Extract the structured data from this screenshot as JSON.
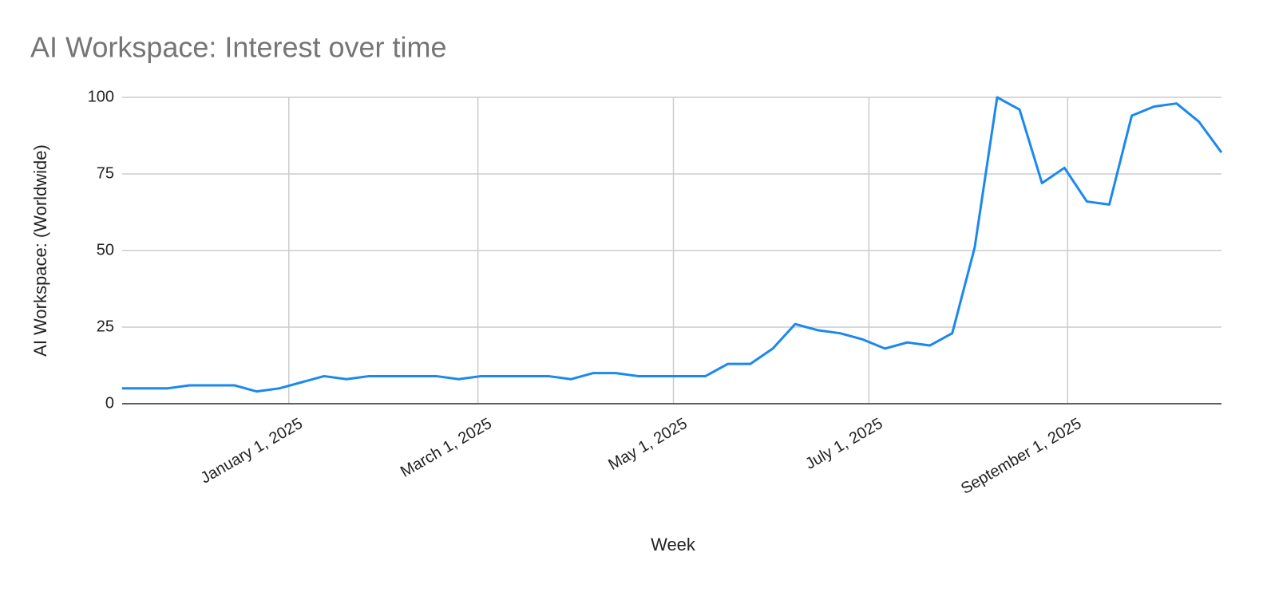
{
  "chart_data": {
    "type": "line",
    "title": "AI Workspace: Interest over time",
    "x_label": "Week",
    "y_label": "AI Workspace: (Worldwide)",
    "color": "#1a88f0",
    "grid": true,
    "x": [
      "2024-11-10",
      "2024-11-17",
      "2024-11-24",
      "2024-12-01",
      "2024-12-08",
      "2024-12-15",
      "2024-12-22",
      "2024-12-29",
      "2025-01-05",
      "2025-01-12",
      "2025-01-19",
      "2025-01-26",
      "2025-02-02",
      "2025-02-09",
      "2025-02-16",
      "2025-02-23",
      "2025-03-02",
      "2025-03-09",
      "2025-03-16",
      "2025-03-23",
      "2025-03-30",
      "2025-04-06",
      "2025-04-13",
      "2025-04-20",
      "2025-04-27",
      "2025-05-04",
      "2025-05-11",
      "2025-05-18",
      "2025-05-25",
      "2025-06-01",
      "2025-06-08",
      "2025-06-15",
      "2025-06-22",
      "2025-06-29",
      "2025-07-06",
      "2025-07-13",
      "2025-07-20",
      "2025-07-27",
      "2025-08-03",
      "2025-08-10",
      "2025-08-17",
      "2025-08-24",
      "2025-08-31",
      "2025-09-07",
      "2025-09-14",
      "2025-09-21",
      "2025-09-28",
      "2025-10-05",
      "2025-10-12",
      "2025-10-19"
    ],
    "values": [
      5,
      5,
      5,
      6,
      6,
      6,
      4,
      5,
      7,
      9,
      8,
      9,
      9,
      9,
      9,
      8,
      9,
      9,
      9,
      9,
      8,
      10,
      10,
      9,
      9,
      9,
      9,
      13,
      13,
      18,
      26,
      24,
      23,
      21,
      18,
      20,
      19,
      23,
      51,
      100,
      96,
      72,
      77,
      66,
      65,
      94,
      97,
      98,
      92,
      82
    ],
    "xlim": [
      "2024-11-10",
      "2025-10-19"
    ],
    "xticks": [
      {
        "value": "2025-01-01",
        "label": "January 1, 2025"
      },
      {
        "value": "2025-03-01",
        "label": "March 1, 2025"
      },
      {
        "value": "2025-05-01",
        "label": "May 1, 2025"
      },
      {
        "value": "2025-07-01",
        "label": "July 1, 2025"
      },
      {
        "value": "2025-09-01",
        "label": "September 1, 2025"
      }
    ],
    "ylim": [
      0,
      100
    ],
    "yticks": [
      0,
      25,
      50,
      75,
      100
    ]
  }
}
